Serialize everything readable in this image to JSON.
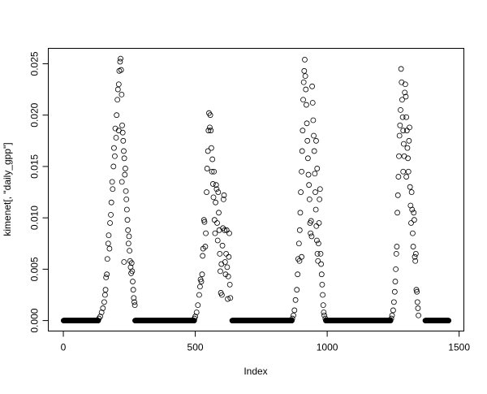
{
  "chart_data": {
    "type": "scatter",
    "title": "",
    "xlabel": "Index",
    "ylabel": "kimenet[, \"daily_gpp\"]",
    "xlim": [
      -57,
      1518
    ],
    "ylim": [
      -0.00102,
      0.0265
    ],
    "x_ticks": [
      0,
      500,
      1000,
      1500
    ],
    "x_tick_labels": [
      "0",
      "500",
      "1000",
      "1500"
    ],
    "y_ticks": [
      0,
      0.005,
      0.01,
      0.015,
      0.02,
      0.025
    ],
    "y_tick_labels": [
      "0.000",
      "0.005",
      "0.010",
      "0.015",
      "0.020",
      "0.025"
    ],
    "grid": false,
    "marker": "open-circle",
    "color": "#000000",
    "zero_runs": [
      [
        1,
        132
      ],
      [
        272,
        496
      ],
      [
        640,
        866
      ],
      [
        995,
        1240
      ],
      [
        1372,
        1460
      ]
    ],
    "points": [
      [
        135,
        0.0002
      ],
      [
        140,
        0.0004
      ],
      [
        145,
        0.0008
      ],
      [
        150,
        0.0012
      ],
      [
        155,
        0.0018
      ],
      [
        158,
        0.0025
      ],
      [
        160,
        0.003
      ],
      [
        162,
        0.0042
      ],
      [
        165,
        0.0045
      ],
      [
        167,
        0.006
      ],
      [
        170,
        0.0075
      ],
      [
        172,
        0.0083
      ],
      [
        175,
        0.007
      ],
      [
        177,
        0.0095
      ],
      [
        180,
        0.0103
      ],
      [
        182,
        0.0115
      ],
      [
        185,
        0.0135
      ],
      [
        187,
        0.0128
      ],
      [
        190,
        0.015
      ],
      [
        192,
        0.0168
      ],
      [
        195,
        0.016
      ],
      [
        197,
        0.0187
      ],
      [
        200,
        0.0178
      ],
      [
        202,
        0.02
      ],
      [
        205,
        0.0215
      ],
      [
        207,
        0.0225
      ],
      [
        210,
        0.023
      ],
      [
        210,
        0.0185
      ],
      [
        212,
        0.0243
      ],
      [
        215,
        0.0252
      ],
      [
        217,
        0.0255
      ],
      [
        219,
        0.0244
      ],
      [
        221,
        0.022
      ],
      [
        222,
        0.0135
      ],
      [
        223,
        0.019
      ],
      [
        225,
        0.0183
      ],
      [
        227,
        0.0175
      ],
      [
        229,
        0.0165
      ],
      [
        230,
        0.0057
      ],
      [
        231,
        0.0158
      ],
      [
        233,
        0.0142
      ],
      [
        235,
        0.0148
      ],
      [
        237,
        0.0126
      ],
      [
        239,
        0.0118
      ],
      [
        241,
        0.0108
      ],
      [
        243,
        0.0098
      ],
      [
        245,
        0.0088
      ],
      [
        247,
        0.0075
      ],
      [
        249,
        0.0082
      ],
      [
        251,
        0.0068
      ],
      [
        253,
        0.0058
      ],
      [
        255,
        0.0052
      ],
      [
        257,
        0.0046
      ],
      [
        259,
        0.0056
      ],
      [
        261,
        0.0048
      ],
      [
        263,
        0.0038
      ],
      [
        265,
        0.003
      ],
      [
        267,
        0.0022
      ],
      [
        269,
        0.0018
      ],
      [
        271,
        0.0015
      ],
      [
        497,
        0.0002
      ],
      [
        500,
        0.0004
      ],
      [
        505,
        0.0008
      ],
      [
        510,
        0.0015
      ],
      [
        515,
        0.0025
      ],
      [
        518,
        0.0033
      ],
      [
        520,
        0.004
      ],
      [
        523,
        0.0038
      ],
      [
        526,
        0.0045
      ],
      [
        528,
        0.0063
      ],
      [
        530,
        0.007
      ],
      [
        533,
        0.0098
      ],
      [
        535,
        0.0096
      ],
      [
        538,
        0.0072
      ],
      [
        540,
        0.0085
      ],
      [
        543,
        0.0125
      ],
      [
        545,
        0.0148
      ],
      [
        548,
        0.0165
      ],
      [
        550,
        0.0185
      ],
      [
        552,
        0.0202
      ],
      [
        555,
        0.0188
      ],
      [
        557,
        0.02
      ],
      [
        559,
        0.0185
      ],
      [
        561,
        0.0168
      ],
      [
        563,
        0.0145
      ],
      [
        565,
        0.0157
      ],
      [
        567,
        0.0133
      ],
      [
        569,
        0.012
      ],
      [
        571,
        0.0145
      ],
      [
        573,
        0.0098
      ],
      [
        575,
        0.0085
      ],
      [
        577,
        0.0115
      ],
      [
        579,
        0.0132
      ],
      [
        581,
        0.0128
      ],
      [
        583,
        0.0095
      ],
      [
        585,
        0.0078
      ],
      [
        587,
        0.0125
      ],
      [
        589,
        0.0105
      ],
      [
        591,
        0.0088
      ],
      [
        593,
        0.0065
      ],
      [
        595,
        0.0048
      ],
      [
        597,
        0.0027
      ],
      [
        599,
        0.0055
      ],
      [
        601,
        0.0025
      ],
      [
        603,
        0.0073
      ],
      [
        605,
        0.009
      ],
      [
        607,
        0.0118
      ],
      [
        609,
        0.0122
      ],
      [
        611,
        0.0088
      ],
      [
        613,
        0.0057
      ],
      [
        615,
        0.0045
      ],
      [
        617,
        0.0065
      ],
      [
        619,
        0.0088
      ],
      [
        621,
        0.0052
      ],
      [
        623,
        0.0021
      ],
      [
        625,
        0.0043
      ],
      [
        627,
        0.0062
      ],
      [
        629,
        0.0085
      ],
      [
        631,
        0.0035
      ],
      [
        633,
        0.0022
      ],
      [
        868,
        0.0002
      ],
      [
        872,
        0.0005
      ],
      [
        876,
        0.001
      ],
      [
        880,
        0.002
      ],
      [
        885,
        0.003
      ],
      [
        888,
        0.0045
      ],
      [
        890,
        0.006
      ],
      [
        893,
        0.0075
      ],
      [
        895,
        0.0058
      ],
      [
        896,
        0.0088
      ],
      [
        898,
        0.0105
      ],
      [
        900,
        0.0125
      ],
      [
        903,
        0.0145
      ],
      [
        903,
        0.0062
      ],
      [
        905,
        0.0165
      ],
      [
        907,
        0.0185
      ],
      [
        909,
        0.0215
      ],
      [
        911,
        0.0232
      ],
      [
        913,
        0.0243
      ],
      [
        915,
        0.0254
      ],
      [
        917,
        0.0238
      ],
      [
        919,
        0.0225
      ],
      [
        921,
        0.021
      ],
      [
        923,
        0.0192
      ],
      [
        925,
        0.0175
      ],
      [
        927,
        0.0158
      ],
      [
        929,
        0.0142
      ],
      [
        931,
        0.0132
      ],
      [
        933,
        0.0118
      ],
      [
        935,
        0.0095
      ],
      [
        937,
        0.0085
      ],
      [
        939,
        0.0097
      ],
      [
        941,
        0.0082
      ],
      [
        943,
        0.0228
      ],
      [
        945,
        0.0212
      ],
      [
        947,
        0.0195
      ],
      [
        949,
        0.018
      ],
      [
        951,
        0.0165
      ],
      [
        953,
        0.0143
      ],
      [
        955,
        0.0125
      ],
      [
        957,
        0.0108
      ],
      [
        958,
        0.0175
      ],
      [
        959,
        0.0092
      ],
      [
        961,
        0.0078
      ],
      [
        962,
        0.0148
      ],
      [
        963,
        0.0065
      ],
      [
        965,
        0.0058
      ],
      [
        967,
        0.0075
      ],
      [
        969,
        0.0095
      ],
      [
        971,
        0.0118
      ],
      [
        973,
        0.0128
      ],
      [
        975,
        0.0065
      ],
      [
        977,
        0.0055
      ],
      [
        979,
        0.0045
      ],
      [
        981,
        0.0035
      ],
      [
        983,
        0.0025
      ],
      [
        985,
        0.0015
      ],
      [
        987,
        0.0008
      ],
      [
        989,
        0.0005
      ],
      [
        993,
        0.0002
      ],
      [
        1243,
        0.0002
      ],
      [
        1246,
        0.0005
      ],
      [
        1250,
        0.001
      ],
      [
        1253,
        0.0018
      ],
      [
        1256,
        0.0028
      ],
      [
        1258,
        0.0038
      ],
      [
        1260,
        0.005
      ],
      [
        1262,
        0.0065
      ],
      [
        1264,
        0.0072
      ],
      [
        1266,
        0.0105
      ],
      [
        1268,
        0.0122
      ],
      [
        1270,
        0.014
      ],
      [
        1272,
        0.016
      ],
      [
        1274,
        0.018
      ],
      [
        1276,
        0.019
      ],
      [
        1278,
        0.0205
      ],
      [
        1280,
        0.0245
      ],
      [
        1282,
        0.0232
      ],
      [
        1284,
        0.0215
      ],
      [
        1286,
        0.0198
      ],
      [
        1288,
        0.0185
      ],
      [
        1288,
        0.0145
      ],
      [
        1290,
        0.0172
      ],
      [
        1292,
        0.016
      ],
      [
        1294,
        0.0222
      ],
      [
        1296,
        0.023
      ],
      [
        1298,
        0.0218
      ],
      [
        1300,
        0.0198
      ],
      [
        1300,
        0.014
      ],
      [
        1302,
        0.0185
      ],
      [
        1304,
        0.0168
      ],
      [
        1306,
        0.0158
      ],
      [
        1308,
        0.0145
      ],
      [
        1310,
        0.0175
      ],
      [
        1312,
        0.0188
      ],
      [
        1314,
        0.013
      ],
      [
        1316,
        0.0112
      ],
      [
        1318,
        0.0095
      ],
      [
        1320,
        0.0125
      ],
      [
        1322,
        0.0108
      ],
      [
        1324,
        0.0085
      ],
      [
        1326,
        0.0072
      ],
      [
        1328,
        0.0105
      ],
      [
        1330,
        0.0098
      ],
      [
        1332,
        0.0062
      ],
      [
        1334,
        0.0058
      ],
      [
        1336,
        0.0065
      ],
      [
        1338,
        0.003
      ],
      [
        1340,
        0.0028
      ],
      [
        1342,
        0.0018
      ],
      [
        1344,
        0.0012
      ],
      [
        1346,
        0.0005
      ]
    ]
  }
}
